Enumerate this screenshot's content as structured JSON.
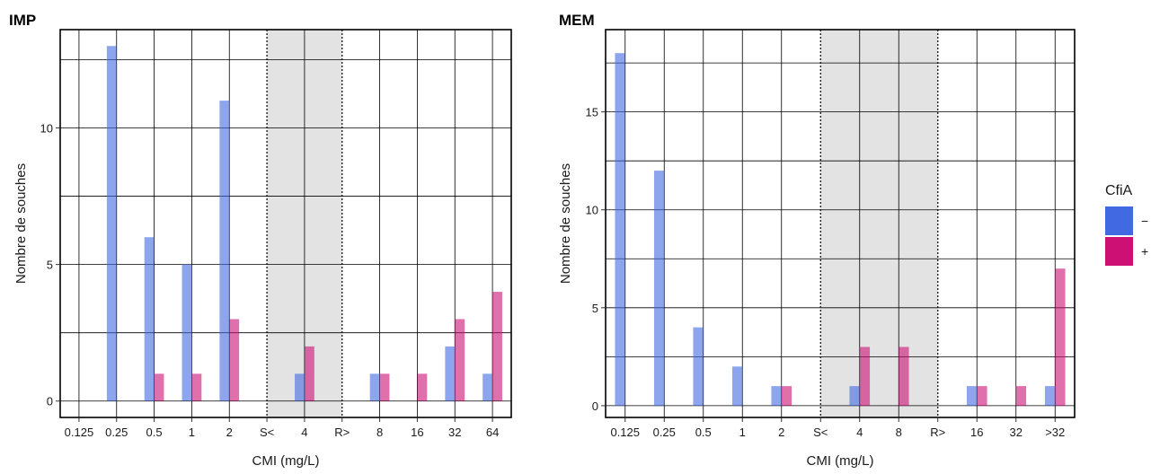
{
  "chart_data": [
    {
      "type": "bar",
      "title": "IMP",
      "xlabel": "CMI (mg/L)",
      "ylabel": "Nombre de souches",
      "categories": [
        "0.125",
        "0.25",
        "0.5",
        "1",
        "2",
        "S<",
        "4",
        "R>",
        "8",
        "16",
        "32",
        "64"
      ],
      "series": [
        {
          "name": "−",
          "values": [
            0,
            13,
            6,
            5,
            11,
            0,
            1,
            0,
            1,
            0,
            2,
            1
          ]
        },
        {
          "name": "+",
          "values": [
            0,
            0,
            1,
            1,
            3,
            0,
            2,
            0,
            1,
            1,
            3,
            4
          ]
        }
      ],
      "ylim": [
        -0.6,
        13.6
      ],
      "yticks": [
        0,
        5,
        10
      ],
      "grid": true,
      "shaded_region": [
        "S<",
        "R>"
      ]
    },
    {
      "type": "bar",
      "title": "MEM",
      "xlabel": "CMI (mg/L)",
      "ylabel": "Nombre de souches",
      "categories": [
        "0.125",
        "0.25",
        "0.5",
        "1",
        "2",
        "S<",
        "4",
        "8",
        "R>",
        "16",
        "32",
        ">32"
      ],
      "series": [
        {
          "name": "−",
          "values": [
            18,
            12,
            4,
            2,
            1,
            0,
            1,
            0,
            0,
            1,
            0,
            1
          ]
        },
        {
          "name": "+",
          "values": [
            0,
            0,
            0,
            0,
            1,
            0,
            3,
            3,
            0,
            1,
            1,
            7
          ]
        }
      ],
      "ylim": [
        -0.6,
        19.2
      ],
      "yticks": [
        0,
        5,
        10,
        15
      ],
      "grid": true,
      "shaded_region": [
        "S<",
        "R>"
      ]
    }
  ],
  "legend": {
    "title": "CfiA",
    "placement": "right",
    "items": [
      {
        "label": "−",
        "color": "#4169e1"
      },
      {
        "label": "+",
        "color": "#cc1074"
      }
    ]
  }
}
